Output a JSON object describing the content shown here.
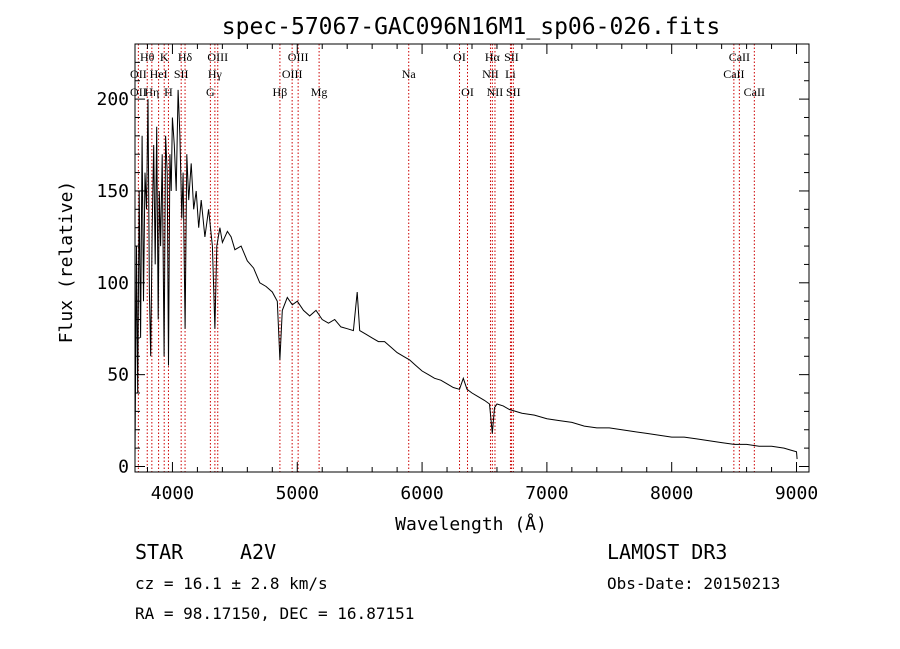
{
  "chart_data": {
    "type": "line",
    "title": "spec-57067-GAC096N16M1_sp06-026.fits",
    "xlabel": "Wavelength (Å)",
    "ylabel": "Flux (relative)",
    "xlim": [
      3700,
      9100
    ],
    "ylim": [
      -3,
      230
    ],
    "xticks": [
      4000,
      5000,
      6000,
      7000,
      8000,
      9000
    ],
    "xtick_labels": [
      "4000",
      "5000",
      "6000",
      "7000",
      "8000",
      "9000"
    ],
    "yticks": [
      0,
      50,
      100,
      150,
      200
    ],
    "ytick_labels": [
      "0",
      "50",
      "100",
      "150",
      "200"
    ],
    "series": [
      {
        "name": "flux",
        "points": [
          [
            3700,
            5
          ],
          [
            3712,
            120
          ],
          [
            3722,
            40
          ],
          [
            3734,
            150
          ],
          [
            3745,
            70
          ],
          [
            3757,
            180
          ],
          [
            3768,
            90
          ],
          [
            3780,
            160
          ],
          [
            3792,
            140
          ],
          [
            3804,
            200
          ],
          [
            3815,
            95
          ],
          [
            3826,
            60
          ],
          [
            3838,
            130
          ],
          [
            3850,
            175
          ],
          [
            3862,
            110
          ],
          [
            3874,
            185
          ],
          [
            3886,
            80
          ],
          [
            3895,
            150
          ],
          [
            3905,
            120
          ],
          [
            3918,
            170
          ],
          [
            3933,
            60
          ],
          [
            3945,
            180
          ],
          [
            3958,
            160
          ],
          [
            3968,
            55
          ],
          [
            3980,
            170
          ],
          [
            3990,
            150
          ],
          [
            4000,
            190
          ],
          [
            4015,
            175
          ],
          [
            4030,
            150
          ],
          [
            4045,
            205
          ],
          [
            4060,
            180
          ],
          [
            4075,
            135
          ],
          [
            4085,
            160
          ],
          [
            4101,
            75
          ],
          [
            4115,
            170
          ],
          [
            4130,
            145
          ],
          [
            4150,
            165
          ],
          [
            4170,
            140
          ],
          [
            4190,
            150
          ],
          [
            4210,
            130
          ],
          [
            4230,
            145
          ],
          [
            4260,
            125
          ],
          [
            4290,
            140
          ],
          [
            4320,
            120
          ],
          [
            4340,
            75
          ],
          [
            4355,
            120
          ],
          [
            4380,
            130
          ],
          [
            4400,
            122
          ],
          [
            4440,
            128
          ],
          [
            4470,
            125
          ],
          [
            4500,
            118
          ],
          [
            4550,
            120
          ],
          [
            4600,
            112
          ],
          [
            4650,
            108
          ],
          [
            4700,
            100
          ],
          [
            4750,
            98
          ],
          [
            4800,
            95
          ],
          [
            4840,
            90
          ],
          [
            4861,
            58
          ],
          [
            4880,
            85
          ],
          [
            4920,
            92
          ],
          [
            4960,
            88
          ],
          [
            5000,
            90
          ],
          [
            5050,
            85
          ],
          [
            5100,
            82
          ],
          [
            5150,
            85
          ],
          [
            5200,
            80
          ],
          [
            5250,
            78
          ],
          [
            5300,
            80
          ],
          [
            5350,
            76
          ],
          [
            5400,
            75
          ],
          [
            5450,
            74
          ],
          [
            5480,
            95
          ],
          [
            5500,
            74
          ],
          [
            5550,
            72
          ],
          [
            5600,
            70
          ],
          [
            5650,
            68
          ],
          [
            5700,
            68
          ],
          [
            5750,
            65
          ],
          [
            5800,
            62
          ],
          [
            5850,
            60
          ],
          [
            5900,
            58
          ],
          [
            5950,
            55
          ],
          [
            6000,
            52
          ],
          [
            6050,
            50
          ],
          [
            6100,
            48
          ],
          [
            6150,
            47
          ],
          [
            6200,
            45
          ],
          [
            6250,
            43
          ],
          [
            6300,
            42
          ],
          [
            6330,
            48
          ],
          [
            6360,
            42
          ],
          [
            6400,
            40
          ],
          [
            6450,
            38
          ],
          [
            6500,
            36
          ],
          [
            6540,
            34
          ],
          [
            6563,
            18
          ],
          [
            6580,
            32
          ],
          [
            6600,
            34
          ],
          [
            6650,
            33
          ],
          [
            6700,
            31
          ],
          [
            6750,
            30
          ],
          [
            6800,
            29
          ],
          [
            6900,
            28
          ],
          [
            7000,
            26
          ],
          [
            7100,
            25
          ],
          [
            7200,
            24
          ],
          [
            7300,
            22
          ],
          [
            7400,
            21
          ],
          [
            7500,
            21
          ],
          [
            7600,
            20
          ],
          [
            7700,
            19
          ],
          [
            7800,
            18
          ],
          [
            7900,
            17
          ],
          [
            8000,
            16
          ],
          [
            8100,
            16
          ],
          [
            8200,
            15
          ],
          [
            8300,
            14
          ],
          [
            8400,
            13
          ],
          [
            8500,
            12
          ],
          [
            8600,
            12
          ],
          [
            8700,
            11
          ],
          [
            8800,
            11
          ],
          [
            8900,
            10
          ],
          [
            8950,
            9
          ],
          [
            9000,
            8
          ],
          [
            9005,
            4
          ]
        ]
      }
    ],
    "line_markers": [
      {
        "label": "Hθ",
        "x": 3798,
        "row": 1
      },
      {
        "label": "OII",
        "x": 3727,
        "row": 2
      },
      {
        "label": "OII",
        "x": 3727,
        "row": 3
      },
      {
        "label": "HeI",
        "x": 3889,
        "row": 2
      },
      {
        "label": "Hη",
        "x": 3835,
        "row": 3
      },
      {
        "label": "K",
        "x": 3934,
        "row": 1
      },
      {
        "label": "H",
        "x": 3968,
        "row": 3
      },
      {
        "label": "SII",
        "x": 4070,
        "row": 2
      },
      {
        "label": "Hδ",
        "x": 4101,
        "row": 1
      },
      {
        "label": "OIII",
        "x": 4363,
        "row": 1
      },
      {
        "label": "Hγ",
        "x": 4340,
        "row": 2
      },
      {
        "label": "G",
        "x": 4304,
        "row": 3
      },
      {
        "label": "OIII",
        "x": 5007,
        "row": 1
      },
      {
        "label": "OIII",
        "x": 4959,
        "row": 2
      },
      {
        "label": "Hβ",
        "x": 4861,
        "row": 3
      },
      {
        "label": "Mg",
        "x": 5175,
        "row": 3
      },
      {
        "label": "Na",
        "x": 5893,
        "row": 2
      },
      {
        "label": "OI",
        "x": 6300,
        "row": 1
      },
      {
        "label": "OI",
        "x": 6364,
        "row": 3
      },
      {
        "label": "Hα",
        "x": 6563,
        "row": 1
      },
      {
        "label": "SII",
        "x": 6716,
        "row": 1
      },
      {
        "label": "NII",
        "x": 6548,
        "row": 2
      },
      {
        "label": "Li",
        "x": 6708,
        "row": 2
      },
      {
        "label": "NII",
        "x": 6584,
        "row": 3
      },
      {
        "label": "SII",
        "x": 6731,
        "row": 3
      },
      {
        "label": "CaII",
        "x": 8542,
        "row": 1
      },
      {
        "label": "CaII",
        "x": 8498,
        "row": 2
      },
      {
        "label": "CaII",
        "x": 8662,
        "row": 3
      }
    ]
  },
  "info": {
    "object_class": "STAR",
    "subclass": "A2V",
    "survey": "LAMOST DR3",
    "redshift": "cz = 16.1 ± 2.8 km/s",
    "obs_date": "Obs-Date: 20150213",
    "coords": "RA =  98.17150, DEC =  16.87151"
  },
  "colors": {
    "spectrum": "#000000",
    "line_marker": "#cc0000",
    "axes": "#000000"
  }
}
